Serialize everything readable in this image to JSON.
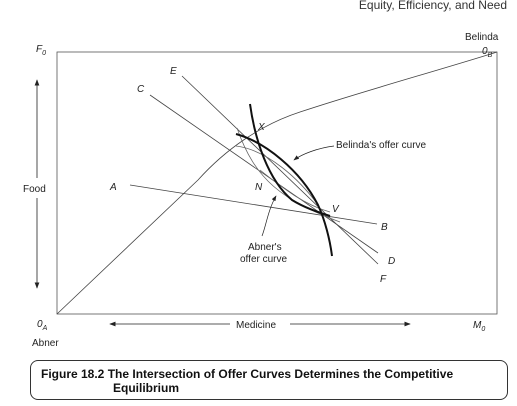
{
  "header": {
    "running_title": "Equity, Efficiency, and Need"
  },
  "diagram": {
    "corner_labels": {
      "belinda": "Belinda",
      "origin_b": "0",
      "origin_b_sub": "B",
      "origin_a": "0",
      "origin_a_sub": "A",
      "abner": "Abner",
      "f0": "F",
      "f0_sub": "0",
      "m0": "M",
      "m0_sub": "0"
    },
    "axis_labels": {
      "food": "Food",
      "medicine": "Medicine"
    },
    "line_labels": {
      "a": "A",
      "b": "B",
      "c": "C",
      "d": "D",
      "e": "E",
      "f": "F"
    },
    "point_labels": {
      "x": "X",
      "n": "N",
      "v": "V"
    },
    "curve_labels": {
      "belinda_offer": "Belinda's offer curve",
      "abner_offer_line1": "Abner's",
      "abner_offer_line2": "offer curve"
    }
  },
  "caption": {
    "number": "Figure 18.2",
    "text_line1": "The Intersection of Offer Curves Determines the Competitive",
    "text_line2": "Equilibrium"
  }
}
